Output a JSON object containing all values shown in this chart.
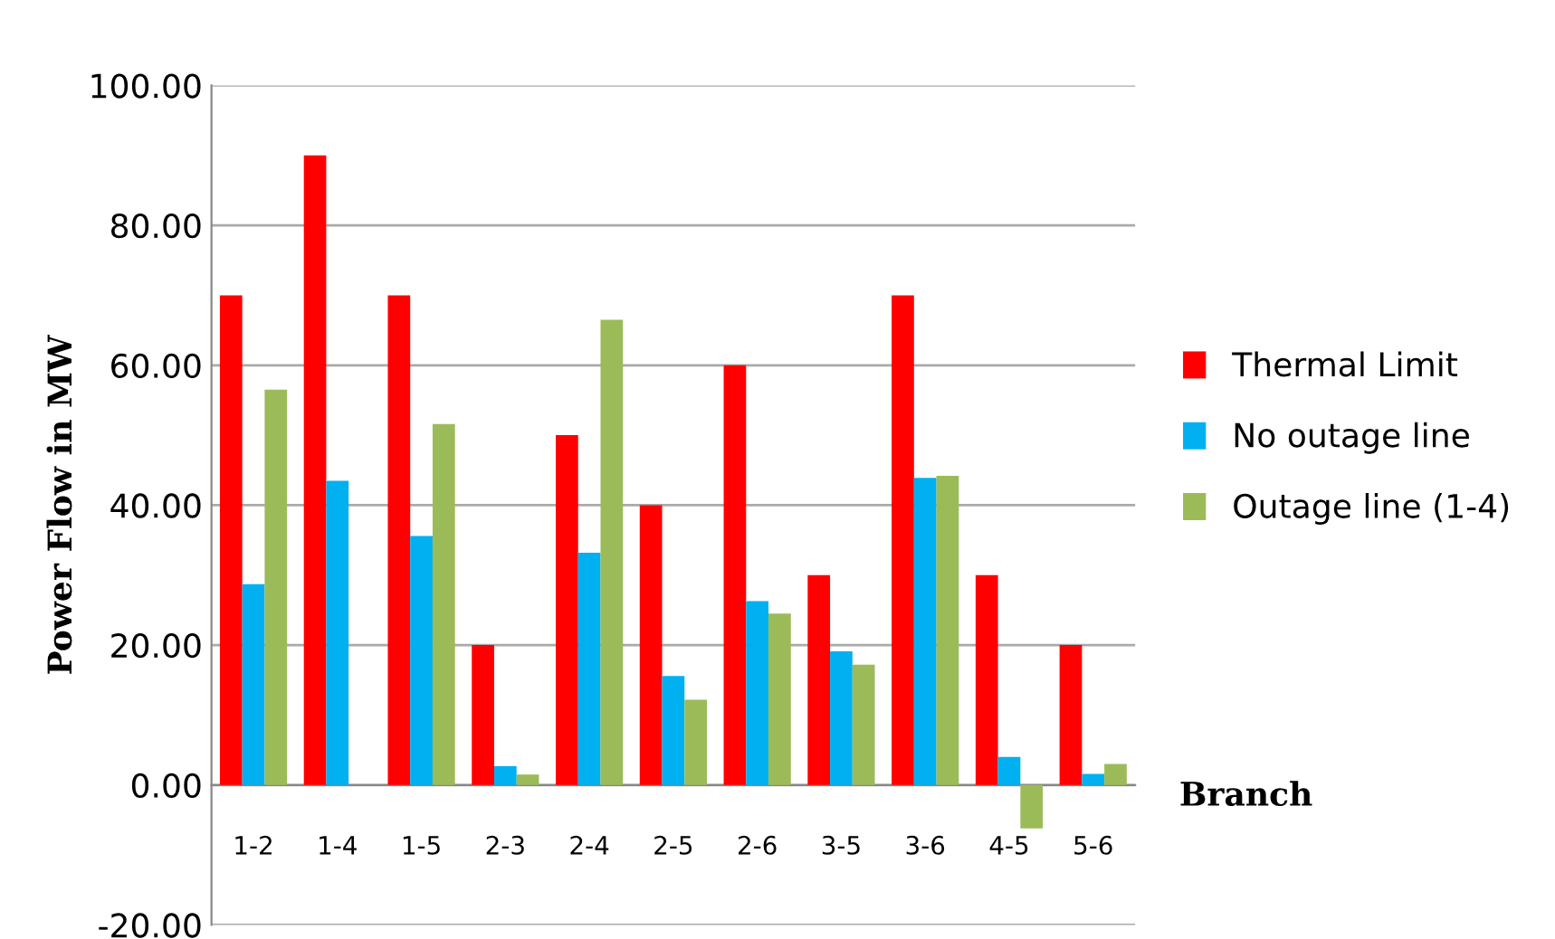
{
  "chart_data": {
    "type": "bar",
    "xlabel": "Branch",
    "ylabel": "Power Flow in MW",
    "categories": [
      "1-2",
      "1-4",
      "1-5",
      "2-3",
      "2-4",
      "2-5",
      "2-6",
      "3-5",
      "3-6",
      "4-5",
      "5-6"
    ],
    "series": [
      {
        "name": "Thermal Limit",
        "color": "#ff0000",
        "values": [
          70,
          90,
          70,
          20,
          50,
          40,
          60,
          30,
          70,
          30,
          20
        ]
      },
      {
        "name": "No outage line",
        "color": "#00b0f0",
        "values": [
          28.7,
          43.5,
          35.6,
          2.7,
          33.2,
          15.6,
          26.3,
          19.1,
          43.9,
          4.0,
          1.6
        ]
      },
      {
        "name": "Outage line (1-4)",
        "color": "#9bbb59",
        "values": [
          56.5,
          0,
          51.6,
          1.5,
          66.5,
          12.2,
          24.5,
          17.2,
          44.2,
          -6.2,
          3.0
        ]
      }
    ],
    "ylim": [
      -20,
      100
    ],
    "yticks": [
      {
        "value": -20,
        "label": "-20.00"
      },
      {
        "value": 0,
        "label": "0.00"
      },
      {
        "value": 20,
        "label": "20.00"
      },
      {
        "value": 40,
        "label": "40.00"
      },
      {
        "value": 60,
        "label": "60.00"
      },
      {
        "value": 80,
        "label": "80.00"
      },
      {
        "value": 100,
        "label": "100.00"
      }
    ],
    "grid": "y",
    "legend": "right"
  }
}
